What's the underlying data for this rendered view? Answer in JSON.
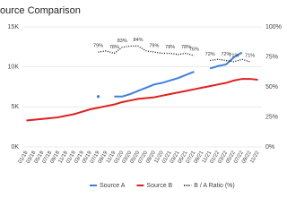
{
  "chart_data": {
    "type": "line",
    "title": "ource Comparison",
    "categories": [
      "01/18",
      "03/18",
      "05/18",
      "07/18",
      "09/18",
      "11/18",
      "01/19",
      "03/19",
      "05/19",
      "07/19",
      "09/19",
      "11/19",
      "01/20",
      "03/20",
      "05/20",
      "07/20",
      "09/20",
      "11/20",
      "01/21",
      "03/21",
      "05/21",
      "07/21",
      "09/21",
      "11/21",
      "01/22",
      "03/22",
      "05/22",
      "07/22",
      "09/22",
      "11/22"
    ],
    "series": [
      {
        "name": "Source A",
        "color": "#3d7fe0",
        "values": [
          null,
          null,
          null,
          null,
          null,
          null,
          null,
          null,
          null,
          6.3,
          null,
          6.3,
          6.3,
          6.6,
          7.0,
          7.4,
          7.8,
          8.0,
          8.3,
          8.6,
          9.0,
          9.4,
          null,
          9.8,
          10.1,
          10.3,
          11.2,
          11.8,
          null,
          null
        ]
      },
      {
        "name": "Source B",
        "color": "#e02020",
        "values": [
          3.3,
          3.4,
          3.5,
          3.6,
          3.7,
          3.9,
          4.1,
          4.4,
          4.7,
          4.9,
          5.1,
          5.3,
          5.6,
          5.8,
          6.0,
          6.1,
          6.2,
          6.4,
          6.6,
          6.8,
          7.0,
          7.2,
          7.4,
          7.6,
          7.8,
          8.0,
          8.3,
          8.5,
          8.5,
          8.4
        ]
      },
      {
        "name": "B / A Ratio (%)",
        "color": "#111111",
        "axis": "y2",
        "dashed": true,
        "values": [
          null,
          null,
          null,
          null,
          null,
          null,
          null,
          null,
          null,
          79,
          80,
          78,
          83,
          84,
          84,
          80,
          79,
          78,
          78,
          77,
          78,
          76,
          null,
          72,
          73,
          72,
          71,
          73,
          71,
          null
        ],
        "value_labels": [
          null,
          null,
          null,
          null,
          null,
          null,
          null,
          null,
          null,
          "79%",
          null,
          "78%",
          "83%",
          null,
          "84%",
          null,
          "79%",
          null,
          "78%",
          null,
          "78%",
          "76%",
          null,
          "72%",
          null,
          "72%",
          "71%",
          null,
          "71%",
          null
        ]
      }
    ],
    "ylim": [
      0,
      15
    ],
    "yticks": [
      {
        "value": 0,
        "label": "0K"
      },
      {
        "value": 5,
        "label": "5K"
      },
      {
        "value": 10,
        "label": "10K"
      },
      {
        "value": 15,
        "label": "15K"
      }
    ],
    "y2lim": [
      0,
      100
    ],
    "y2ticks": [
      {
        "value": 0,
        "label": "0%"
      },
      {
        "value": 25,
        "label": "25%"
      },
      {
        "value": 50,
        "label": "50%"
      },
      {
        "value": 75,
        "label": "75%"
      },
      {
        "value": 100,
        "label": "100%"
      }
    ],
    "grid": true
  }
}
